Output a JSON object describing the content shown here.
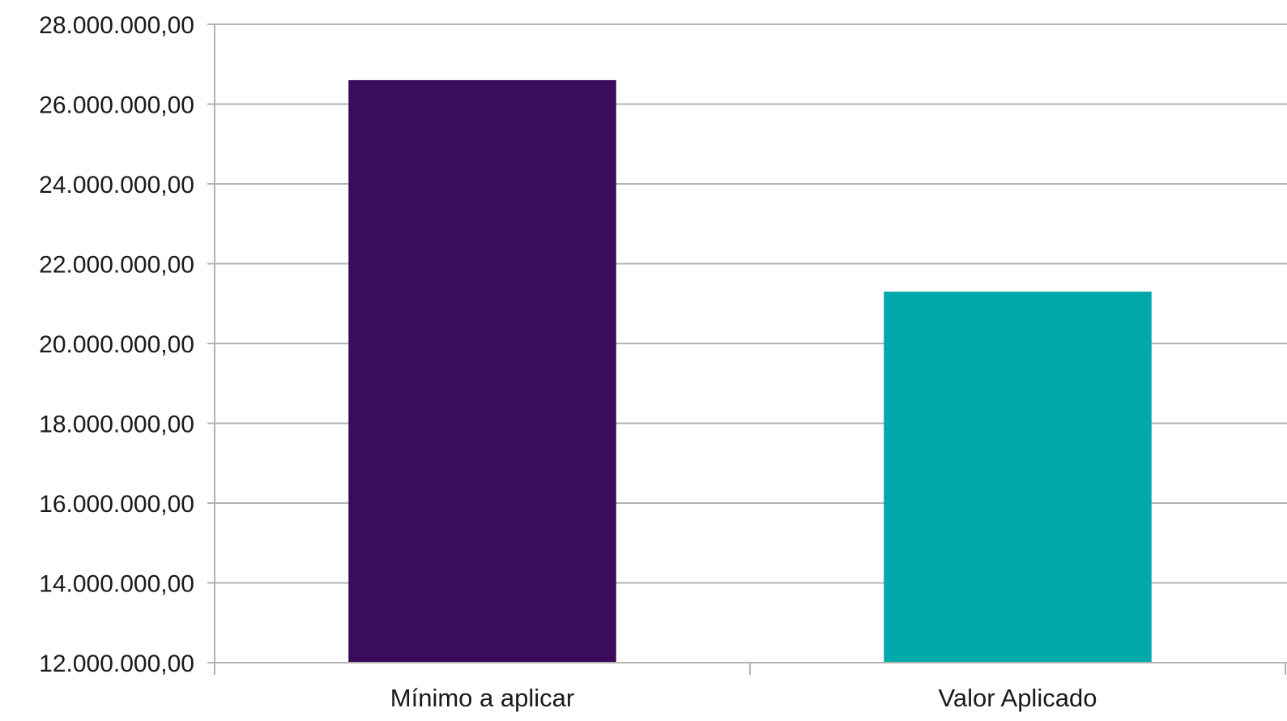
{
  "chart_data": {
    "type": "bar",
    "categories": [
      "Mínimo a aplicar",
      "Valor Aplicado"
    ],
    "values": [
      26600000,
      21300000
    ],
    "colors": [
      "#3b0c59",
      "#00a9ab"
    ],
    "ylim": [
      12000000,
      28000000
    ],
    "yticks": [
      12000000,
      14000000,
      16000000,
      18000000,
      20000000,
      22000000,
      24000000,
      26000000,
      28000000
    ],
    "ytick_labels": [
      "12.000.000,00",
      "14.000.000,00",
      "16.000.000,00",
      "18.000.000,00",
      "20.000.000,00",
      "22.000.000,00",
      "24.000.000,00",
      "26.000.000,00",
      "28.000.000,00"
    ],
    "grid": true,
    "title": "",
    "xlabel": "",
    "ylabel": ""
  }
}
